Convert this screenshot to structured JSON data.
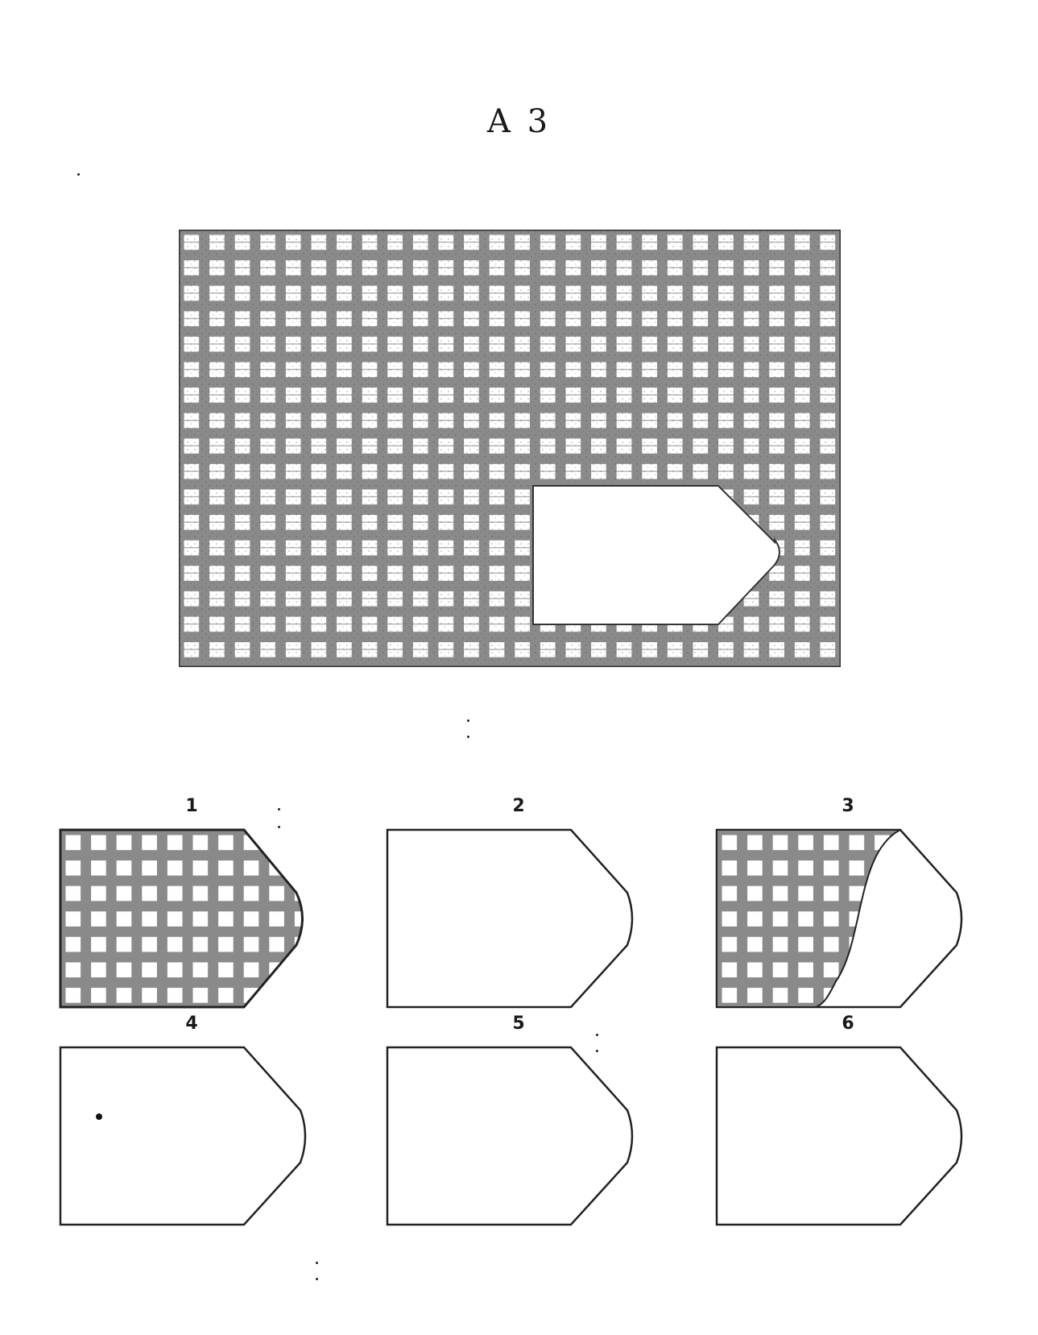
{
  "title": "A 3",
  "options": [
    {
      "number": "1",
      "content": "pattern-fill"
    },
    {
      "number": "2",
      "content": "blank"
    },
    {
      "number": "3",
      "content": "partial-pattern"
    },
    {
      "number": "4",
      "content": "blank"
    },
    {
      "number": "5",
      "content": "blank"
    },
    {
      "number": "6",
      "content": "blank"
    }
  ],
  "colors": {
    "grid_line": "#6e6e6e",
    "outline": "#222222",
    "background": "#ffffff"
  }
}
